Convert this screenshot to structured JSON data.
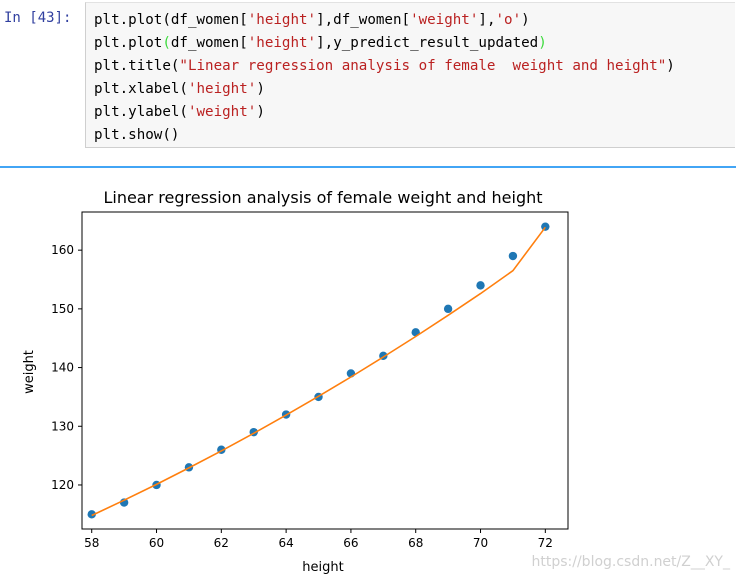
{
  "prompt": "In [43]:",
  "code": {
    "line1": {
      "p1": "plt.plot(df_women[",
      "s1": "'height'",
      "p2": "],df_women[",
      "s2": "'weight'",
      "p3": "],",
      "s3": "'o'",
      "p4": ")"
    },
    "line2": {
      "p1": "plt.plot",
      "g1": "(",
      "p2": "df_women[",
      "s1": "'height'",
      "p3": "],y_predict_result_updated",
      "g2": ")"
    },
    "line3": {
      "p1": "plt.title(",
      "s1": "\"Linear regression analysis of female  weight and height\"",
      "p2": ")"
    },
    "line4": {
      "p1": "plt.xlabel(",
      "s1": "'height'",
      "p2": ")"
    },
    "line5": {
      "p1": "plt.ylabel(",
      "s1": "'weight'",
      "p2": ")"
    },
    "line6": "plt.show()"
  },
  "watermark": "https://blog.csdn.net/Z__XY_",
  "chart_data": {
    "type": "scatter",
    "title": "Linear regression analysis of female  weight and height",
    "xlabel": "height",
    "ylabel": "weight",
    "xlim": [
      57.7,
      72.7
    ],
    "ylim": [
      112.5,
      166.5
    ],
    "xticks": [
      58,
      60,
      62,
      64,
      66,
      68,
      70,
      72
    ],
    "yticks": [
      120,
      130,
      140,
      150,
      160
    ],
    "grid": false,
    "series": [
      {
        "marker": "o",
        "color": "#1f77b4",
        "x": [
          58,
          59,
          60,
          61,
          62,
          63,
          64,
          65,
          66,
          67,
          68,
          69,
          70,
          71,
          72
        ],
        "y": [
          115,
          117,
          120,
          123,
          126,
          129,
          132,
          135,
          139,
          142,
          146,
          150,
          154,
          159,
          164
        ]
      },
      {
        "marker": "line",
        "color": "#ff7f0e",
        "x": [
          58,
          59,
          60,
          61,
          62,
          63,
          64,
          65,
          66,
          67,
          68,
          69,
          70,
          71,
          72
        ],
        "y": [
          114.8,
          117.4,
          120.1,
          122.9,
          125.8,
          128.8,
          131.9,
          135.1,
          138.4,
          141.8,
          145.3,
          148.9,
          152.6,
          156.5,
          163.9
        ]
      }
    ]
  }
}
